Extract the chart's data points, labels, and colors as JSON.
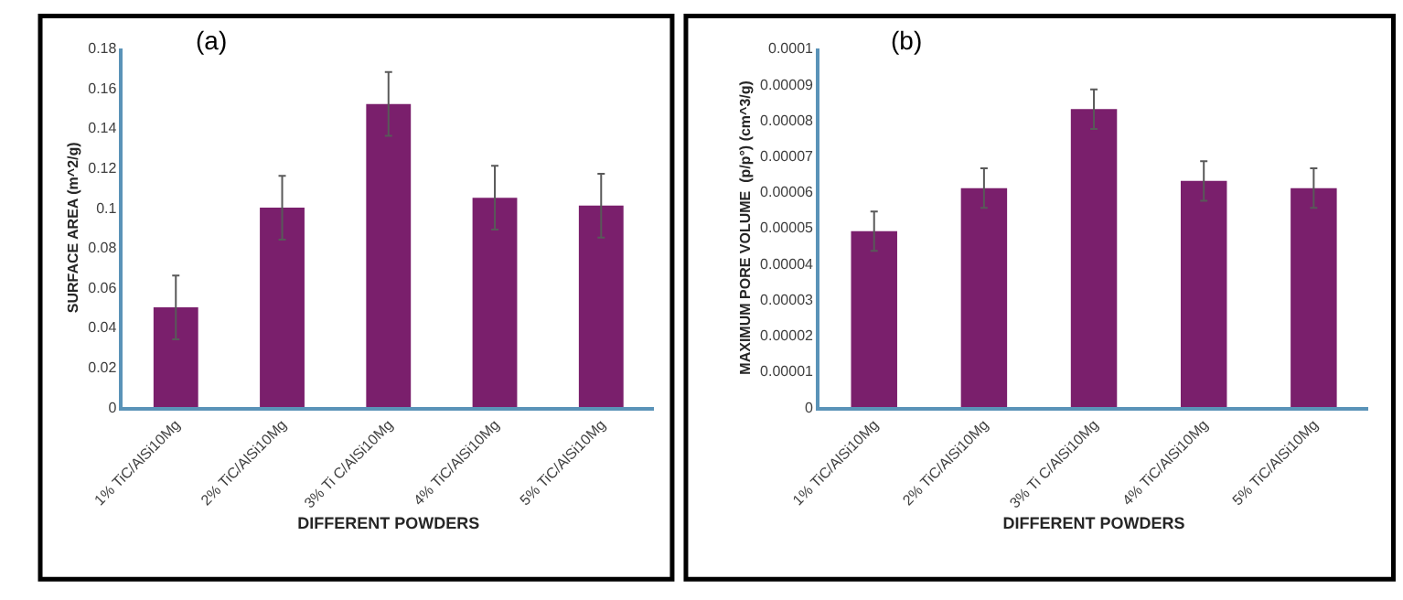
{
  "chart_data": [
    {
      "type": "bar",
      "title": "(a)",
      "xlabel": "DIFFERENT POWDERS",
      "ylabel": "SURFACE AREA (m^2/g)",
      "categories": [
        "1% TiC/AlSi10Mg",
        "2% TiC/AlSi10Mg",
        "3% Ti C/AlSi10Mg",
        "4% TiC/AlSi10Mg",
        "5% TiC/AlSi10Mg"
      ],
      "series": [
        {
          "color": "#7a1f6c",
          "values": [
            0.05,
            0.1,
            0.152,
            0.105,
            0.101
          ],
          "errors": [
            0.016,
            0.016,
            0.016,
            0.016,
            0.016
          ]
        }
      ],
      "ylim": [
        0,
        0.18
      ],
      "yticks": [
        {
          "value": 0,
          "label": "0"
        },
        {
          "value": 0.02,
          "label": "0.02"
        },
        {
          "value": 0.04,
          "label": "0.04"
        },
        {
          "value": 0.06,
          "label": "0.06"
        },
        {
          "value": 0.08,
          "label": "0.08"
        },
        {
          "value": 0.1,
          "label": "0.1"
        },
        {
          "value": 0.12,
          "label": "0.12"
        },
        {
          "value": 0.14,
          "label": "0.14"
        },
        {
          "value": 0.16,
          "label": "0.16"
        },
        {
          "value": 0.18,
          "label": "0.18"
        }
      ],
      "grid": false
    },
    {
      "type": "bar",
      "title": "(b)",
      "xlabel": "DIFFERENT POWDERS",
      "ylabel": "MAXIMUM PORE VOLUME  (p/p°) (cm^3/g)",
      "categories": [
        "1% TiC/AlSi10Mg",
        "2% TiC/AlSi10Mg",
        "3% Ti C/AlSi10Mg",
        "4% TiC/AlSi10Mg",
        "5% TiC/AlSi10Mg"
      ],
      "series": [
        {
          "color": "#7a1f6c",
          "values": [
            4.9e-05,
            6.1e-05,
            8.3e-05,
            6.3e-05,
            6.1e-05
          ],
          "errors": [
            5.5e-06,
            5.5e-06,
            5.5e-06,
            5.5e-06,
            5.5e-06
          ]
        }
      ],
      "ylim": [
        0,
        0.0001
      ],
      "yticks": [
        {
          "value": 0,
          "label": "0"
        },
        {
          "value": 1e-05,
          "label": "0.00001"
        },
        {
          "value": 2e-05,
          "label": "0.00002"
        },
        {
          "value": 3e-05,
          "label": "0.00003"
        },
        {
          "value": 4e-05,
          "label": "0.00004"
        },
        {
          "value": 5e-05,
          "label": "0.00005"
        },
        {
          "value": 6e-05,
          "label": "0.00006"
        },
        {
          "value": 7e-05,
          "label": "0.00007"
        },
        {
          "value": 8e-05,
          "label": "0.00008"
        },
        {
          "value": 9e-05,
          "label": "0.00009"
        },
        {
          "value": 0.0001,
          "label": "0.0001"
        }
      ],
      "grid": false
    }
  ]
}
